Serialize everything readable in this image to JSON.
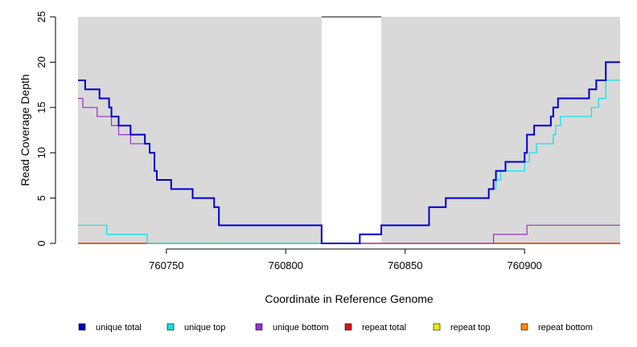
{
  "chart_data": {
    "type": "line",
    "title": "",
    "xlabel": "Coordinate in Reference Genome",
    "ylabel": "Read Coverage Depth",
    "xlim": [
      760713,
      760940
    ],
    "ylim": [
      0,
      25
    ],
    "x_ticks": [
      760750,
      760800,
      760850,
      760900
    ],
    "x_tick_labels": [
      "760750",
      "760800",
      "760850",
      "760900"
    ],
    "y_ticks": [
      0,
      5,
      10,
      15,
      20,
      25
    ],
    "y_tick_labels": [
      "0",
      "5",
      "10",
      "15",
      "20",
      "25"
    ],
    "background_color": "#d9d9d9",
    "unshaded_region": [
      760815,
      760840
    ],
    "series": [
      {
        "name": "unique total",
        "color": "#0000cd",
        "style": "step",
        "points": [
          [
            760713,
            18
          ],
          [
            760716,
            17
          ],
          [
            760722,
            16
          ],
          [
            760726,
            15
          ],
          [
            760727,
            14
          ],
          [
            760730,
            13
          ],
          [
            760735,
            12
          ],
          [
            760741,
            11
          ],
          [
            760743,
            10
          ],
          [
            760745,
            8
          ],
          [
            760746,
            7
          ],
          [
            760752,
            6
          ],
          [
            760761,
            5
          ],
          [
            760770,
            4
          ],
          [
            760772,
            2
          ],
          [
            760815,
            0
          ],
          [
            760831,
            1
          ],
          [
            760840,
            2
          ],
          [
            760860,
            4
          ],
          [
            760867,
            5
          ],
          [
            760885,
            6
          ],
          [
            760887,
            7
          ],
          [
            760888,
            8
          ],
          [
            760892,
            9
          ],
          [
            760900,
            10
          ],
          [
            760901,
            12
          ],
          [
            760904,
            13
          ],
          [
            760911,
            14
          ],
          [
            760912,
            15
          ],
          [
            760914,
            16
          ],
          [
            760927,
            17
          ],
          [
            760930,
            18
          ],
          [
            760934,
            20
          ],
          [
            760940,
            20
          ]
        ]
      },
      {
        "name": "unique top",
        "color": "#00e5ee",
        "style": "step",
        "points": [
          [
            760713,
            2
          ],
          [
            760725,
            1
          ],
          [
            760742,
            0
          ],
          [
            760831,
            1
          ],
          [
            760840,
            2
          ],
          [
            760860,
            4
          ],
          [
            760867,
            5
          ],
          [
            760885,
            6
          ],
          [
            760888,
            7
          ],
          [
            760890,
            8
          ],
          [
            760900,
            9
          ],
          [
            760902,
            10
          ],
          [
            760905,
            11
          ],
          [
            760912,
            12
          ],
          [
            760913,
            13
          ],
          [
            760915,
            14
          ],
          [
            760928,
            15
          ],
          [
            760931,
            16
          ],
          [
            760934,
            18
          ],
          [
            760940,
            18
          ]
        ]
      },
      {
        "name": "unique bottom",
        "color": "#9932cc",
        "style": "step",
        "points": [
          [
            760713,
            16
          ],
          [
            760715,
            15
          ],
          [
            760721,
            14
          ],
          [
            760727,
            13
          ],
          [
            760730,
            12
          ],
          [
            760735,
            11
          ],
          [
            760741,
            11
          ],
          [
            760743,
            10
          ],
          [
            760745,
            8
          ],
          [
            760746,
            7
          ],
          [
            760752,
            6
          ],
          [
            760761,
            5
          ],
          [
            760770,
            4
          ],
          [
            760772,
            2
          ],
          [
            760815,
            0
          ],
          [
            760887,
            1
          ],
          [
            760901,
            2
          ],
          [
            760940,
            2
          ]
        ]
      },
      {
        "name": "repeat total",
        "color": "#dd1111",
        "style": "step",
        "points": [
          [
            760713,
            0
          ],
          [
            760940,
            0
          ]
        ]
      },
      {
        "name": "repeat top",
        "color": "#eeee00",
        "style": "step",
        "points": [
          [
            760713,
            0
          ],
          [
            760940,
            0
          ]
        ]
      },
      {
        "name": "repeat bottom",
        "color": "#ff8c00",
        "style": "step",
        "points": [
          [
            760713,
            0
          ],
          [
            760940,
            0
          ]
        ]
      }
    ],
    "legend_position": "bottom"
  }
}
